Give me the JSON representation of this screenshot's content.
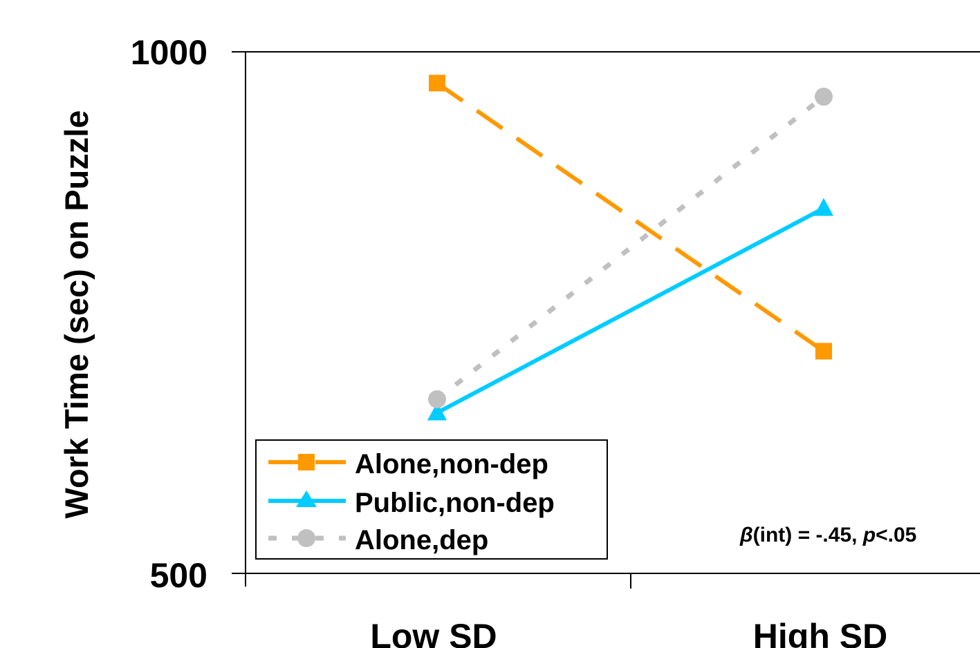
{
  "chart_data": {
    "type": "line",
    "title": "",
    "xlabel": "",
    "ylabel": "Work Time (sec) on Puzzle",
    "categories": [
      "Low SD",
      "High SD"
    ],
    "ylim": [
      500,
      1000
    ],
    "yticks": [
      "1000",
      "500"
    ],
    "grid": false,
    "legend_position": "bottom-left",
    "annotation": {
      "beta": "β",
      "int_text": "(int) = -.45, ",
      "p": "p",
      "p_rest": "<.05"
    },
    "series": [
      {
        "name": "Alone,non-dep",
        "values": [
          970,
          713
        ],
        "color": "#FF9900",
        "marker": "square",
        "line_style": "long-dash"
      },
      {
        "name": "Public,non-dep",
        "values": [
          654,
          850
        ],
        "color": "#00CCFF",
        "marker": "triangle",
        "line_style": "solid"
      },
      {
        "name": "Alone,dep",
        "values": [
          667,
          957
        ],
        "color": "#C0C0C0",
        "marker": "circle",
        "line_style": "dotted"
      }
    ]
  }
}
